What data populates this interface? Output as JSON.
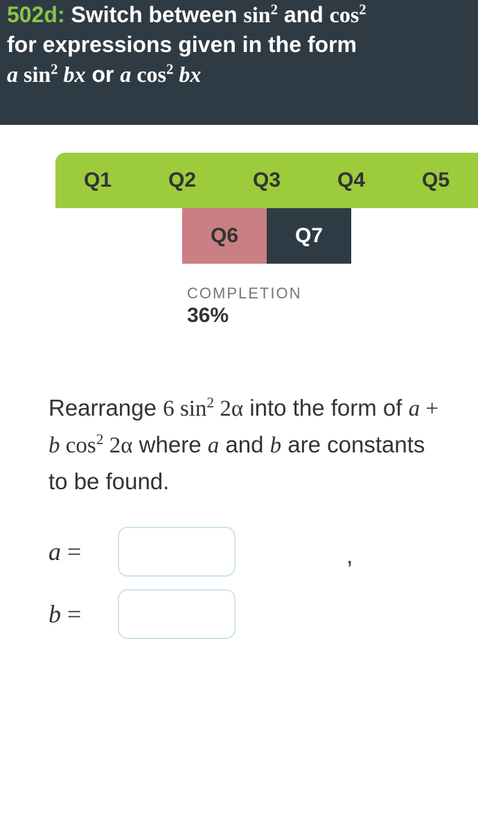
{
  "header": {
    "code": "502d:",
    "title_plain1": " Switch between ",
    "title_math1_a": "sin",
    "title_math1_sup": "2",
    "title_plain2": " and ",
    "title_math2_a": "cos",
    "title_math2_sup": "2",
    "title_line2": "for expressions given in the form",
    "title_line3_a": "a",
    "title_line3_sin": " sin",
    "title_line3_sup": "2",
    "title_line3_bx": " bx",
    "title_line3_or": " or ",
    "title_line3_a2": "a",
    "title_line3_cos": " cos",
    "title_line3_sup2": "2",
    "title_line3_bx2": " bx"
  },
  "tabs": {
    "row1": [
      "Q1",
      "Q2",
      "Q3",
      "Q4",
      "Q5"
    ],
    "row2": [
      "Q6",
      "Q7"
    ],
    "row2_states": [
      "wrong",
      "current"
    ]
  },
  "completion": {
    "label": "COMPLETION",
    "value": "36%"
  },
  "question": {
    "pre": "Rearrange ",
    "expr1_coef": "6",
    "expr1_fn": " sin",
    "expr1_sup": "2",
    "expr1_arg": " 2α",
    "mid1": " into the form of ",
    "expr2_a": "a",
    "expr2_plus": " + ",
    "expr2_b": "b",
    "expr2_fn": " cos",
    "expr2_sup": "2",
    "expr2_arg": " 2α",
    "mid2": " where ",
    "const_a": "a",
    "mid3": " and ",
    "const_b": "b",
    "post": " are constants to be found."
  },
  "answers": {
    "a_label": "a",
    "b_label": "b",
    "eq": " =",
    "a_value": "",
    "b_value": "",
    "comma": ","
  },
  "colors": {
    "header_bg": "#2f3b44",
    "code": "#8bc34a",
    "tab_done": "#9ccc3c",
    "tab_wrong": "#c97f84",
    "tab_current": "#2f3b44",
    "input_border": "#cfe3ef"
  }
}
